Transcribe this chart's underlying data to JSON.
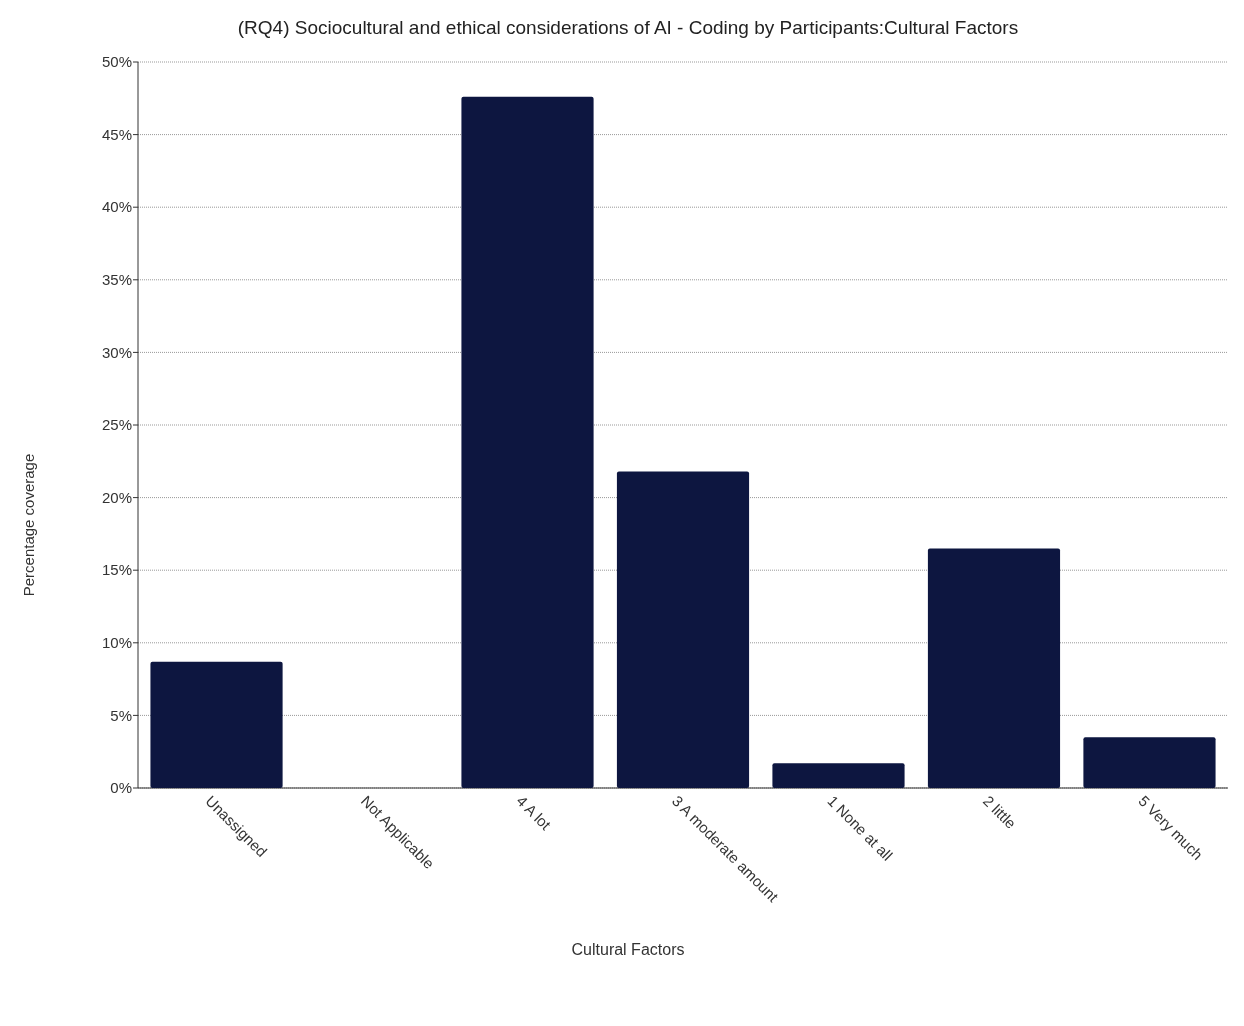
{
  "chart_data": {
    "type": "bar",
    "title": "(RQ4) Sociocultural and ethical considerations of AI - Coding by Participants:Cultural Factors",
    "xlabel": "Cultural Factors",
    "ylabel": "Percentage coverage",
    "categories": [
      "Unassigned",
      "Not Applicable",
      "4 A lot",
      "3 A moderate amount",
      "1 None at all",
      "2 little",
      "5 Very much"
    ],
    "values": [
      8.7,
      0,
      47.6,
      21.8,
      1.7,
      16.5,
      3.5
    ],
    "color": "#0d1640",
    "ylim": [
      0,
      50
    ],
    "yticks": [
      {
        "value": 0,
        "label": "0%"
      },
      {
        "value": 5,
        "label": "5%"
      },
      {
        "value": 10,
        "label": "10%"
      },
      {
        "value": 15,
        "label": "15%"
      },
      {
        "value": 20,
        "label": "20%"
      },
      {
        "value": 25,
        "label": "25%"
      },
      {
        "value": 30,
        "label": "30%"
      },
      {
        "value": 35,
        "label": "35%"
      },
      {
        "value": 40,
        "label": "40%"
      },
      {
        "value": 45,
        "label": "45%"
      },
      {
        "value": 50,
        "label": "50%"
      }
    ],
    "grid": "y"
  }
}
